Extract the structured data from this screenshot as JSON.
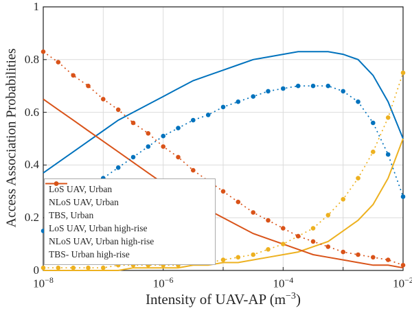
{
  "chart_data": {
    "type": "line",
    "title": "",
    "ylabel": "Access Association Probabilities",
    "xlabel_main": "Intensity of UAV-AP (m",
    "xlabel_sup": "−3",
    "xlabel_close": ")",
    "xscale": "log",
    "xlim": [
      -8,
      -2
    ],
    "ylim": [
      0,
      1
    ],
    "grid": true,
    "x_grid": [
      -8,
      -7,
      -6,
      -5,
      -4,
      -3,
      -2
    ],
    "x_ticks": [
      {
        "pos": -8,
        "base": "10",
        "exp": "−8"
      },
      {
        "pos": -6,
        "base": "10",
        "exp": "−6"
      },
      {
        "pos": -4,
        "base": "10",
        "exp": "−4"
      },
      {
        "pos": -2,
        "base": "10",
        "exp": "−2"
      }
    ],
    "y_ticks": [
      {
        "pos": 0,
        "label": "0"
      },
      {
        "pos": 0.2,
        "label": "0.2"
      },
      {
        "pos": 0.4,
        "label": "0.4"
      },
      {
        "pos": 0.6,
        "label": "0.6"
      },
      {
        "pos": 0.8,
        "label": "0.8"
      },
      {
        "pos": 1,
        "label": "1"
      }
    ],
    "x": [
      -8,
      -7.75,
      -7.5,
      -7.25,
      -7,
      -6.75,
      -6.5,
      -6.25,
      -6,
      -5.75,
      -5.5,
      -5.25,
      -5,
      -4.75,
      -4.5,
      -4.25,
      -4,
      -3.75,
      -3.5,
      -3.25,
      -3,
      -2.75,
      -2.5,
      -2.25,
      -2
    ],
    "series": [
      {
        "name": "LoS UAV, Urban",
        "color": "#0072BD",
        "line": "solid",
        "markers": false,
        "values": [
          0.37,
          0.41,
          0.45,
          0.49,
          0.53,
          0.57,
          0.6,
          0.63,
          0.66,
          0.69,
          0.72,
          0.74,
          0.76,
          0.78,
          0.8,
          0.81,
          0.82,
          0.83,
          0.83,
          0.83,
          0.82,
          0.8,
          0.74,
          0.64,
          0.5
        ]
      },
      {
        "name": "NLoS UAV, Urban",
        "color": "#EDB120",
        "line": "solid",
        "markers": false,
        "values": [
          0.0,
          0.0,
          0.0,
          0.0,
          0.0,
          0.0,
          0.01,
          0.01,
          0.01,
          0.01,
          0.02,
          0.02,
          0.03,
          0.03,
          0.04,
          0.05,
          0.06,
          0.07,
          0.09,
          0.11,
          0.15,
          0.19,
          0.25,
          0.35,
          0.5
        ]
      },
      {
        "name": "TBS, Urban",
        "color": "#D95319",
        "line": "solid",
        "markers": false,
        "values": [
          0.65,
          0.61,
          0.57,
          0.53,
          0.49,
          0.45,
          0.41,
          0.37,
          0.33,
          0.3,
          0.26,
          0.23,
          0.2,
          0.17,
          0.14,
          0.12,
          0.1,
          0.08,
          0.06,
          0.05,
          0.04,
          0.03,
          0.02,
          0.02,
          0.01
        ]
      },
      {
        "name": "LoS UAV, Urban high-rise",
        "color": "#0072BD",
        "line": "dotted",
        "markers": true,
        "values": [
          0.15,
          0.2,
          0.25,
          0.3,
          0.35,
          0.39,
          0.43,
          0.47,
          0.51,
          0.54,
          0.57,
          0.59,
          0.62,
          0.64,
          0.66,
          0.68,
          0.69,
          0.7,
          0.7,
          0.7,
          0.68,
          0.64,
          0.56,
          0.44,
          0.28
        ]
      },
      {
        "name": "NLoS UAV, Urban high-rise",
        "color": "#EDB120",
        "line": "dotted",
        "markers": true,
        "values": [
          0.01,
          0.01,
          0.01,
          0.01,
          0.01,
          0.02,
          0.02,
          0.02,
          0.02,
          0.02,
          0.03,
          0.03,
          0.04,
          0.05,
          0.06,
          0.08,
          0.1,
          0.13,
          0.16,
          0.21,
          0.27,
          0.35,
          0.45,
          0.58,
          0.75
        ]
      },
      {
        "name": "TBS- Urban high-rise",
        "color": "#D95319",
        "line": "dotted",
        "markers": true,
        "values": [
          0.83,
          0.79,
          0.74,
          0.7,
          0.65,
          0.61,
          0.56,
          0.52,
          0.47,
          0.43,
          0.38,
          0.34,
          0.3,
          0.26,
          0.22,
          0.19,
          0.16,
          0.13,
          0.11,
          0.09,
          0.07,
          0.06,
          0.05,
          0.04,
          0.02
        ]
      }
    ],
    "legend": {
      "position": "lower-left-inside",
      "border_color": "#ababab",
      "background": "#ffffff"
    },
    "colors": {
      "blue": "#0072BD",
      "yellow": "#EDB120",
      "red": "#D95319"
    },
    "axis_color": "#1a1a1a",
    "grid_color": "#dbdbdb"
  }
}
